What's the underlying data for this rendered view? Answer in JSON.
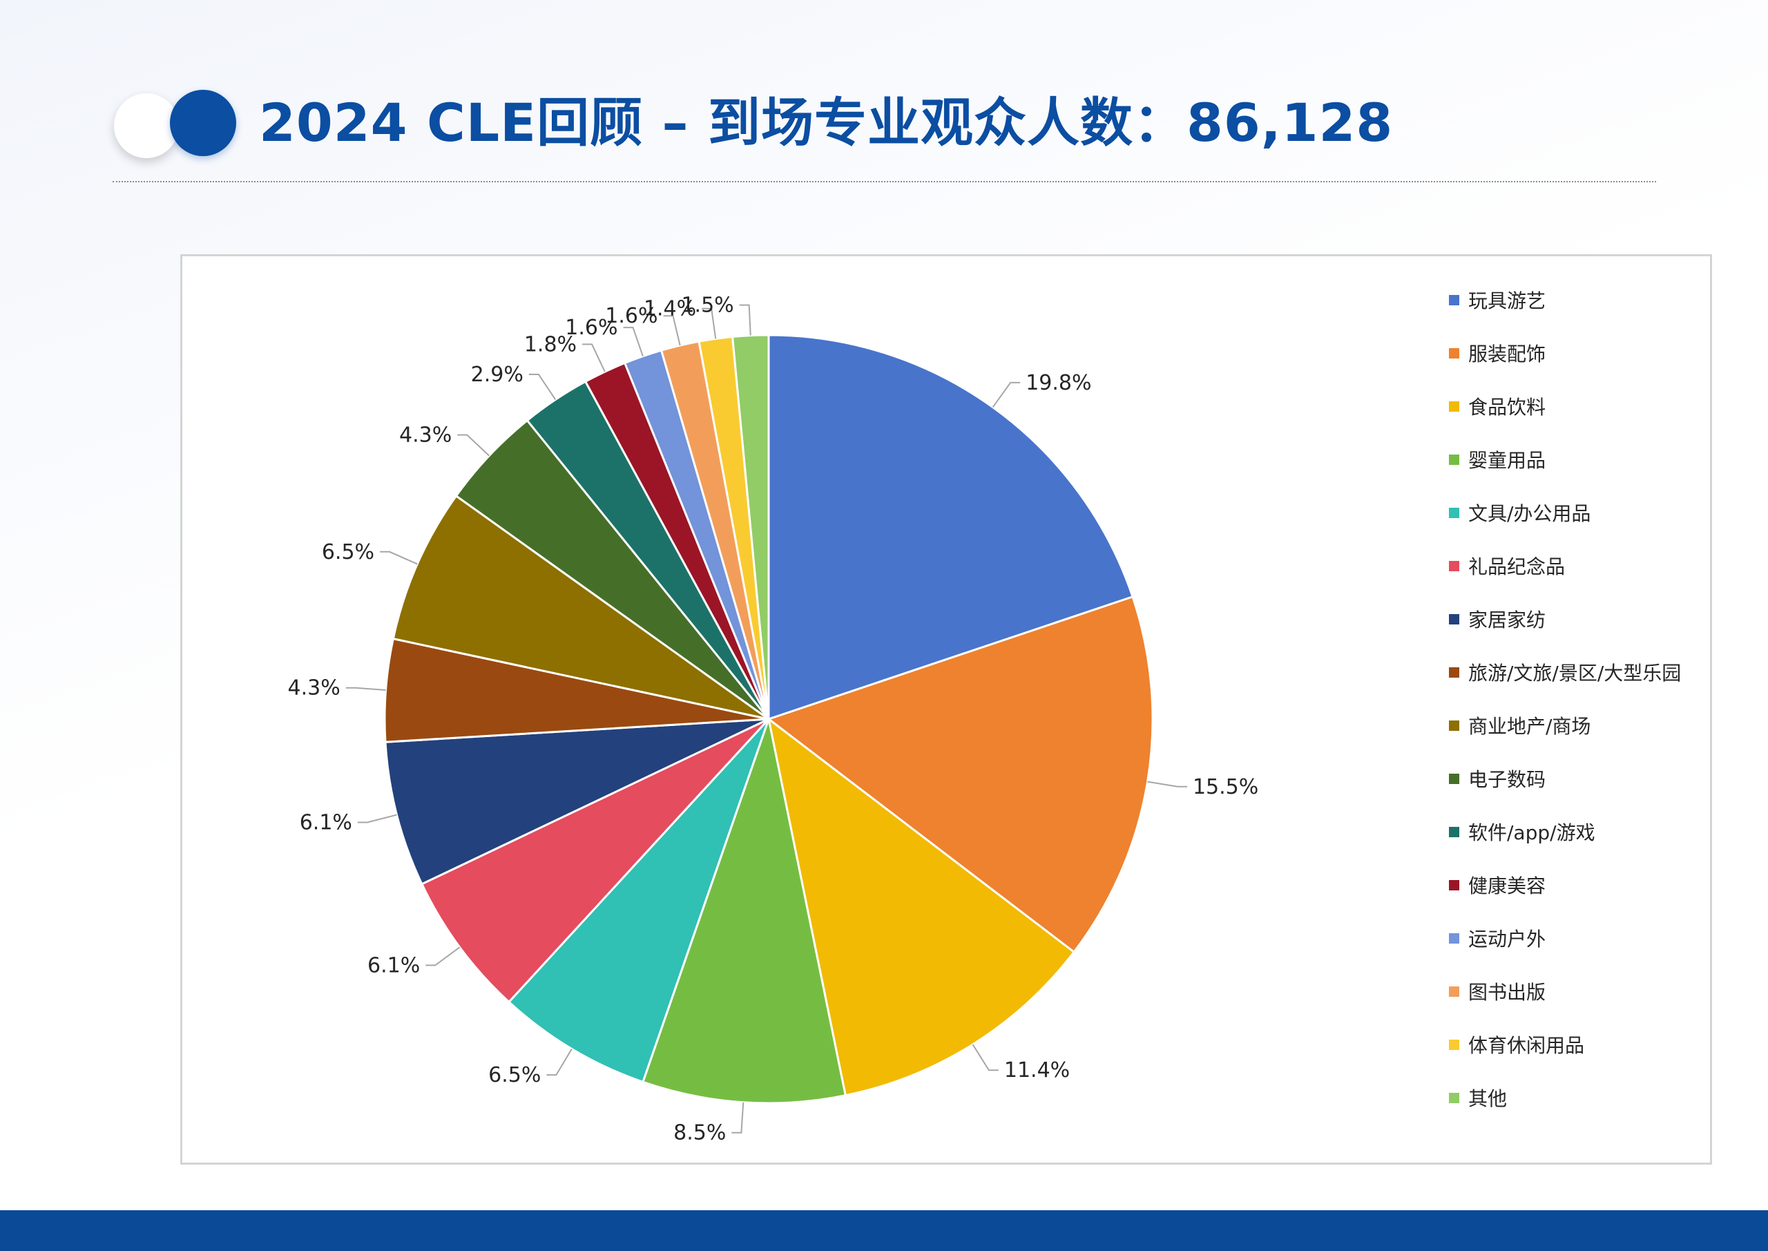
{
  "page": {
    "title": "2024 CLE回顾 – 到场专业观众人数：86,128"
  },
  "colors": {
    "brand": "#0b4ea2",
    "footer": "#0b4a96"
  },
  "chart_data": {
    "type": "pie",
    "title": "",
    "legend_position": "right",
    "categories": [
      "玩具游艺",
      "服装配饰",
      "食品饮料",
      "婴童用品",
      "文具/办公用品",
      "礼品纪念品",
      "家居家纺",
      "旅游/文旅/景区/大型乐园",
      "商业地产/商场",
      "电子数码",
      "软件/app/游戏",
      "健康美容",
      "运动户外",
      "图书出版",
      "体育休闲用品",
      "其他"
    ],
    "values": [
      19.8,
      15.5,
      11.4,
      8.5,
      6.5,
      6.1,
      6.1,
      4.3,
      6.5,
      4.3,
      2.9,
      1.8,
      1.6,
      1.6,
      1.4,
      1.5
    ],
    "labels": [
      "19.8%",
      "15.5%",
      "11.4%",
      "8.5%",
      "6.5%",
      "6.1%",
      "6.1%",
      "4.3%",
      "6.5%",
      "4.3%",
      "2.9%",
      "1.8%",
      "1.6%",
      "1.6%",
      "1.4%",
      "1.5%"
    ],
    "colors": [
      "#4874cb",
      "#ee822f",
      "#f2ba02",
      "#75bd42",
      "#30c0b4",
      "#e54c5e",
      "#23417c",
      "#9a4a10",
      "#8d7000",
      "#456f28",
      "#1c7269",
      "#9b1526",
      "#7393da",
      "#f29e5a",
      "#f9cb31",
      "#91cc66"
    ],
    "unit": "%"
  }
}
